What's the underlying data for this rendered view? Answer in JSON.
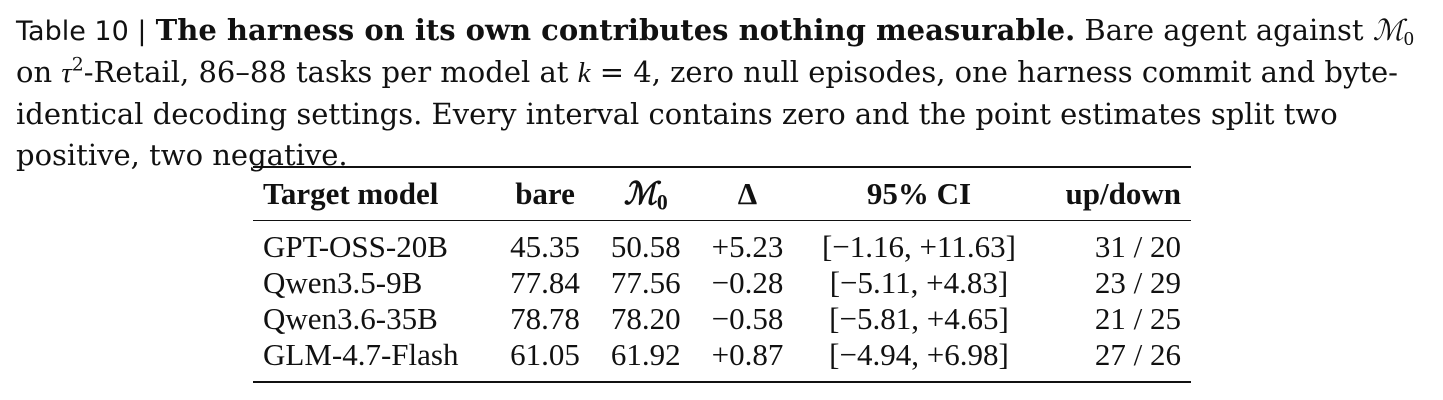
{
  "caption": {
    "label": "Table 10 |",
    "title": "The harness on its own contributes nothing measurable.",
    "text_a": " Bare agent against ",
    "m0_symbol": "ℳ",
    "m0_sub": "0",
    "text_b": " on ",
    "tau": "τ",
    "tau_sup": "2",
    "text_c": "-Retail, 86–88 tasks per model at ",
    "k_var": "k",
    "text_d": " = 4, zero null episodes, one harness commit and byte-identical decoding settings. Every interval contains zero and the point estimates split two positive, two negative."
  },
  "table": {
    "headers": {
      "model": "Target model",
      "bare": "bare",
      "m0_symbol": "ℳ",
      "m0_sub": "0",
      "delta": "Δ",
      "ci": "95% CI",
      "updown": "up/down"
    },
    "rows": [
      {
        "model": "GPT-OSS-20B",
        "bare": "45.35",
        "m0": "50.58",
        "delta": "+5.23",
        "ci": "[−1.16, +11.63]",
        "updown": "31 / 20"
      },
      {
        "model": "Qwen3.5-9B",
        "bare": "77.84",
        "m0": "77.56",
        "delta": "−0.28",
        "ci": "[−5.11, +4.83]",
        "updown": "23 / 29"
      },
      {
        "model": "Qwen3.6-35B",
        "bare": "78.78",
        "m0": "78.20",
        "delta": "−0.58",
        "ci": "[−5.81, +4.65]",
        "updown": "21 / 25"
      },
      {
        "model": "GLM-4.7-Flash",
        "bare": "61.05",
        "m0": "61.92",
        "delta": "+0.87",
        "ci": "[−4.94, +6.98]",
        "updown": "27 / 26"
      }
    ]
  }
}
